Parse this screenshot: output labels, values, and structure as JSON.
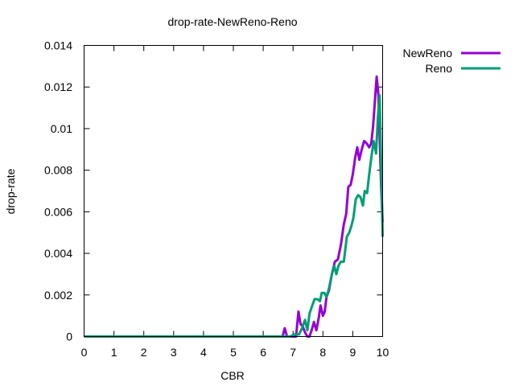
{
  "chart_data": {
    "type": "line",
    "title": "drop-rate-NewReno-Reno",
    "xlabel": "CBR",
    "ylabel": "drop-rate",
    "xlim": [
      0,
      10
    ],
    "ylim": [
      0,
      0.014
    ],
    "xticks": [
      "0",
      "1",
      "2",
      "3",
      "4",
      "5",
      "6",
      "7",
      "8",
      "9",
      "10"
    ],
    "yticks": [
      "0",
      "0.002",
      "0.004",
      "0.006",
      "0.008",
      "0.01",
      "0.012",
      "0.014"
    ],
    "legend_position": "outside-right",
    "grid": false,
    "series": [
      {
        "name": "NewReno",
        "color": "#9400d3",
        "points": [
          [
            0,
            0
          ],
          [
            6.65,
            0
          ],
          [
            6.72,
            0.0004
          ],
          [
            6.8,
            0
          ],
          [
            7.1,
            0
          ],
          [
            7.18,
            0.0012
          ],
          [
            7.25,
            0.0006
          ],
          [
            7.32,
            0.0005
          ],
          [
            7.4,
            0.0002
          ],
          [
            7.48,
            0
          ],
          [
            7.55,
            0
          ],
          [
            7.62,
            0.0003
          ],
          [
            7.7,
            0.0007
          ],
          [
            7.78,
            0.0003
          ],
          [
            7.86,
            0.0009
          ],
          [
            7.92,
            0.0015
          ],
          [
            8.0,
            0.001
          ],
          [
            8.06,
            0.0012
          ],
          [
            8.12,
            0.0019
          ],
          [
            8.2,
            0.0022
          ],
          [
            8.3,
            0.003
          ],
          [
            8.4,
            0.0036
          ],
          [
            8.5,
            0.0037
          ],
          [
            8.6,
            0.0044
          ],
          [
            8.7,
            0.0054
          ],
          [
            8.78,
            0.0059
          ],
          [
            8.85,
            0.0072
          ],
          [
            8.93,
            0.0073
          ],
          [
            9.0,
            0.0078
          ],
          [
            9.08,
            0.0086
          ],
          [
            9.15,
            0.0091
          ],
          [
            9.22,
            0.0085
          ],
          [
            9.3,
            0.009
          ],
          [
            9.38,
            0.0094
          ],
          [
            9.46,
            0.0093
          ],
          [
            9.55,
            0.0091
          ],
          [
            9.62,
            0.0093
          ],
          [
            9.68,
            0.0101
          ],
          [
            9.74,
            0.0113
          ],
          [
            9.8,
            0.0125
          ],
          [
            9.86,
            0.0116
          ],
          [
            9.9,
            0.0096
          ],
          [
            9.95,
            0.0072
          ],
          [
            10.0,
            0.0055
          ]
        ]
      },
      {
        "name": "Reno",
        "color": "#009e73",
        "points": [
          [
            0,
            0
          ],
          [
            6.9,
            0
          ],
          [
            7.05,
            0.0001
          ],
          [
            7.2,
            0.0001
          ],
          [
            7.3,
            0.0004
          ],
          [
            7.4,
            0.0008
          ],
          [
            7.48,
            0.0003
          ],
          [
            7.55,
            0.0011
          ],
          [
            7.62,
            0.0014
          ],
          [
            7.72,
            0.0018
          ],
          [
            7.82,
            0.0018
          ],
          [
            7.9,
            0.0017
          ],
          [
            7.96,
            0.0021
          ],
          [
            8.05,
            0.0021
          ],
          [
            8.12,
            0.0019
          ],
          [
            8.2,
            0.0023
          ],
          [
            8.3,
            0.003
          ],
          [
            8.38,
            0.0034
          ],
          [
            8.45,
            0.003
          ],
          [
            8.52,
            0.0034
          ],
          [
            8.6,
            0.0036
          ],
          [
            8.7,
            0.0036
          ],
          [
            8.8,
            0.0048
          ],
          [
            8.88,
            0.005
          ],
          [
            8.95,
            0.0053
          ],
          [
            9.02,
            0.0057
          ],
          [
            9.1,
            0.0066
          ],
          [
            9.18,
            0.0068
          ],
          [
            9.26,
            0.0067
          ],
          [
            9.34,
            0.0063
          ],
          [
            9.4,
            0.007
          ],
          [
            9.48,
            0.0069
          ],
          [
            9.55,
            0.0078
          ],
          [
            9.62,
            0.0086
          ],
          [
            9.7,
            0.0094
          ],
          [
            9.78,
            0.0088
          ],
          [
            9.84,
            0.0105
          ],
          [
            9.9,
            0.0116
          ],
          [
            9.94,
            0.009
          ],
          [
            10.0,
            0.0048
          ]
        ]
      }
    ]
  }
}
